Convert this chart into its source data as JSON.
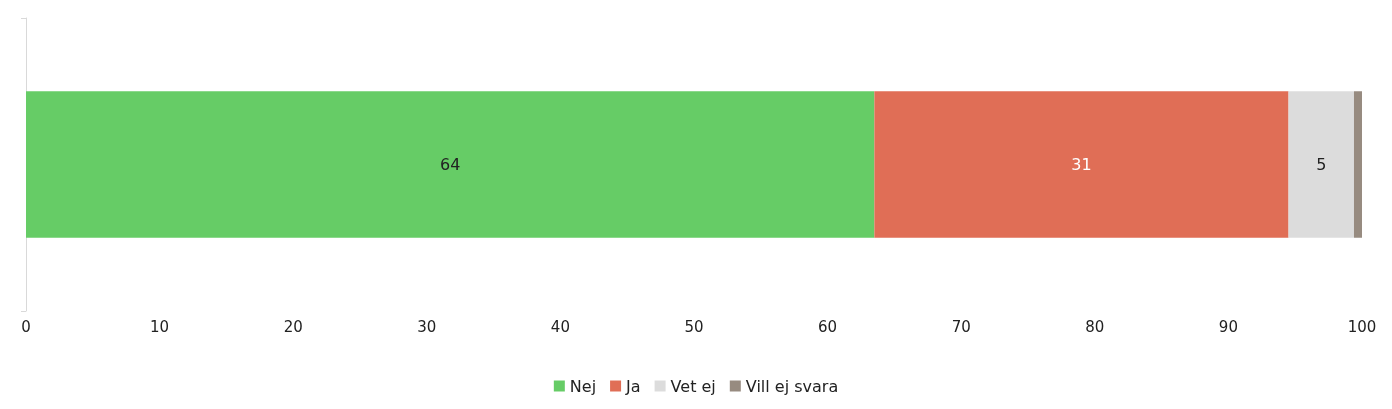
{
  "chart_data": {
    "type": "bar",
    "orientation": "horizontal",
    "stacked": true,
    "categories": [
      null
    ],
    "series": [
      {
        "name": "Nej",
        "color": "#66cc66",
        "values": [
          63.5
        ],
        "value_labels": [
          "64"
        ]
      },
      {
        "name": "Ja",
        "color": "#e06e56",
        "values": [
          31
        ],
        "value_labels": [
          "31"
        ]
      },
      {
        "name": "Vet ej",
        "color": "#dcdcdc",
        "values": [
          4.9
        ],
        "value_labels": [
          "5"
        ]
      },
      {
        "name": "Vill ej svara",
        "color": "#978b80",
        "values": [
          0.6
        ],
        "value_labels": [
          null
        ]
      }
    ],
    "xlim": [
      0,
      100
    ],
    "xticks": [
      0,
      10,
      20,
      30,
      40,
      50,
      60,
      70,
      80,
      90,
      100
    ],
    "grid": false,
    "legend": "bottom"
  }
}
